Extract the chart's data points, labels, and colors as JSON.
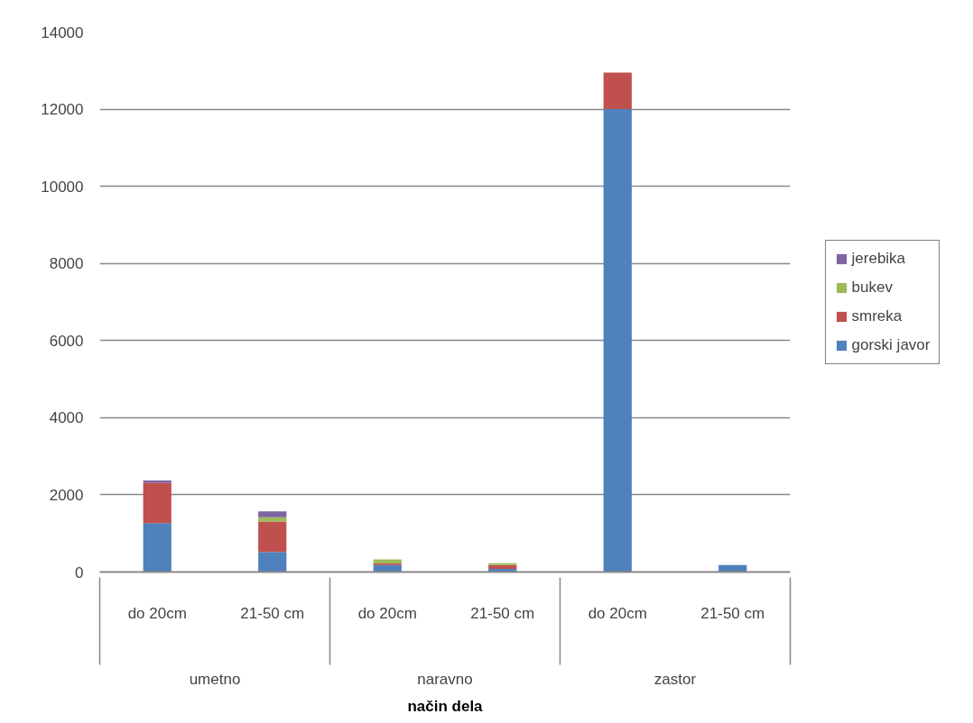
{
  "chart_data": {
    "type": "bar",
    "stacked": true,
    "xlabel": "način dela",
    "categories": [
      "do 20cm",
      "21-50 cm",
      "do 20cm",
      "21-50 cm",
      "do 20cm",
      "21-50 cm"
    ],
    "annotations": [
      "umetno",
      "naravno",
      "zastor"
    ],
    "series": [
      {
        "name": "gorski javor",
        "color": "#4f81bd",
        "values": [
          1270,
          520,
          180,
          80,
          12000,
          180
        ]
      },
      {
        "name": "smreka",
        "color": "#c0504d",
        "values": [
          1040,
          790,
          40,
          100,
          950,
          0
        ]
      },
      {
        "name": "bukev",
        "color": "#9bbb59",
        "values": [
          0,
          110,
          110,
          50,
          0,
          0
        ]
      },
      {
        "name": "jerebika",
        "color": "#8064a2",
        "values": [
          60,
          150,
          0,
          0,
          0,
          0
        ]
      }
    ],
    "ylim": [
      0,
      14000
    ],
    "yticks": [
      0,
      2000,
      4000,
      6000,
      8000,
      10000,
      12000,
      14000
    ],
    "grid": "y",
    "legend": "right"
  }
}
